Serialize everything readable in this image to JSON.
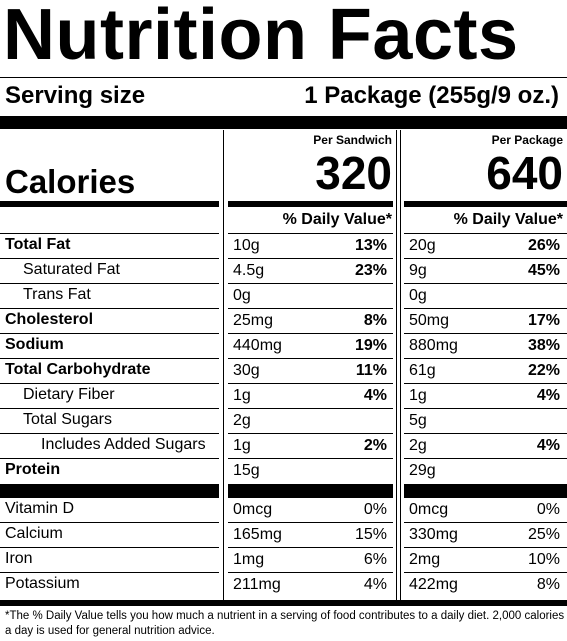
{
  "title": "Nutrition Facts",
  "serving": {
    "label": "Serving size",
    "value": "1 Package (255g/9 oz.)"
  },
  "calories": {
    "label": "Calories",
    "per_sandwich_label": "Per Sandwich",
    "per_package_label": "Per Package",
    "per_sandwich": "320",
    "per_package": "640"
  },
  "dv_header": "% Daily Value*",
  "nutrients": [
    {
      "name": "Total Fat",
      "bold": true,
      "indent": 0,
      "s_amt": "10g",
      "s_dv": "13%",
      "p_amt": "20g",
      "p_dv": "26%"
    },
    {
      "name": "Saturated Fat",
      "bold": false,
      "indent": 1,
      "s_amt": "4.5g",
      "s_dv": "23%",
      "p_amt": "9g",
      "p_dv": "45%"
    },
    {
      "name": "Trans Fat",
      "bold": false,
      "indent": 1,
      "s_amt": "0g",
      "s_dv": "",
      "p_amt": "0g",
      "p_dv": ""
    },
    {
      "name": "Cholesterol",
      "bold": true,
      "indent": 0,
      "s_amt": "25mg",
      "s_dv": "8%",
      "p_amt": "50mg",
      "p_dv": "17%"
    },
    {
      "name": "Sodium",
      "bold": true,
      "indent": 0,
      "s_amt": "440mg",
      "s_dv": "19%",
      "p_amt": "880mg",
      "p_dv": "38%"
    },
    {
      "name": "Total Carbohydrate",
      "bold": true,
      "indent": 0,
      "s_amt": "30g",
      "s_dv": "11%",
      "p_amt": "61g",
      "p_dv": "22%"
    },
    {
      "name": "Dietary Fiber",
      "bold": false,
      "indent": 1,
      "s_amt": "1g",
      "s_dv": "4%",
      "p_amt": "1g",
      "p_dv": "4%"
    },
    {
      "name": "Total Sugars",
      "bold": false,
      "indent": 1,
      "s_amt": "2g",
      "s_dv": "",
      "p_amt": "5g",
      "p_dv": ""
    },
    {
      "name": "Includes Added Sugars",
      "bold": false,
      "indent": 2,
      "s_amt": "1g",
      "s_dv": "2%",
      "p_amt": "2g",
      "p_dv": "4%"
    },
    {
      "name": "Protein",
      "bold": true,
      "indent": 0,
      "s_amt": "15g",
      "s_dv": "",
      "p_amt": "29g",
      "p_dv": ""
    }
  ],
  "vitamins": [
    {
      "name": "Vitamin D",
      "s_amt": "0mcg",
      "s_dv": "0%",
      "p_amt": "0mcg",
      "p_dv": "0%"
    },
    {
      "name": "Calcium",
      "s_amt": "165mg",
      "s_dv": "15%",
      "p_amt": "330mg",
      "p_dv": "25%"
    },
    {
      "name": "Iron",
      "s_amt": "1mg",
      "s_dv": "6%",
      "p_amt": "2mg",
      "p_dv": "10%"
    },
    {
      "name": "Potassium",
      "s_amt": "211mg",
      "s_dv": "4%",
      "p_amt": "422mg",
      "p_dv": "8%"
    }
  ],
  "footnote": "*The % Daily Value tells you how much a nutrient in a serving of food contributes to a daily diet. 2,000 calories a day is used for general nutrition advice."
}
